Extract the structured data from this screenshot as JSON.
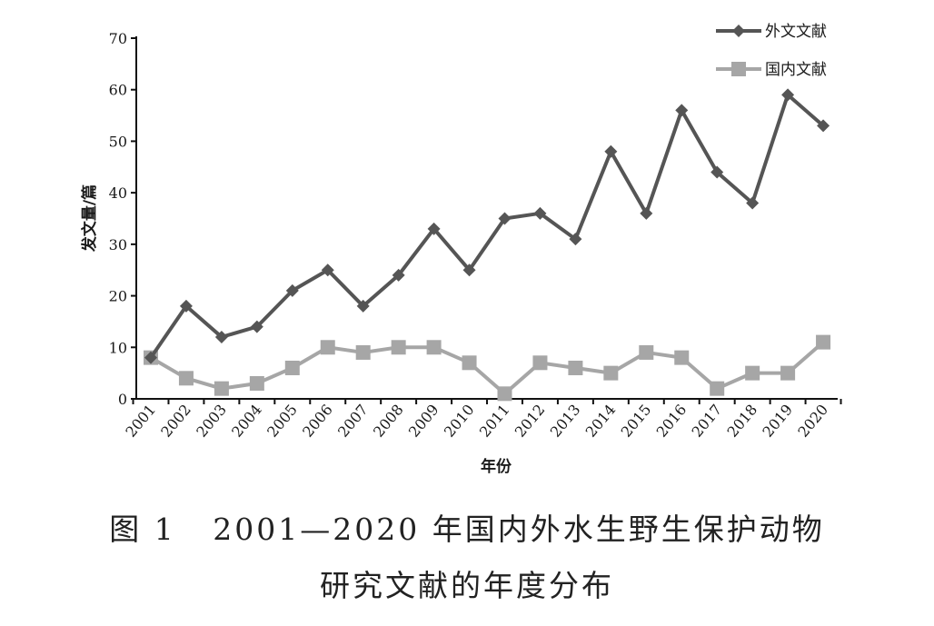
{
  "chart_data": {
    "type": "line",
    "xlabel": "年份",
    "ylabel": "发文量/篇",
    "ylim": [
      0,
      70
    ],
    "yticks": [
      0,
      10,
      20,
      30,
      40,
      50,
      60,
      70
    ],
    "categories": [
      "2001",
      "2002",
      "2003",
      "2004",
      "2005",
      "2006",
      "2007",
      "2008",
      "2009",
      "2010",
      "2011",
      "2012",
      "2013",
      "2014",
      "2015",
      "2016",
      "2017",
      "2018",
      "2019",
      "2020"
    ],
    "series": [
      {
        "name": "外文文献",
        "marker": "diamond",
        "color": "#555555",
        "values": [
          8,
          18,
          12,
          14,
          21,
          25,
          18,
          24,
          33,
          25,
          35,
          36,
          31,
          48,
          36,
          56,
          44,
          38,
          59,
          53
        ]
      },
      {
        "name": "国内文献",
        "marker": "square",
        "color": "#a6a6a6",
        "values": [
          8,
          4,
          2,
          3,
          6,
          10,
          9,
          10,
          10,
          7,
          1,
          7,
          6,
          5,
          9,
          8,
          2,
          5,
          5,
          11
        ]
      }
    ],
    "legend": "top-right",
    "grid": false
  },
  "caption": {
    "line1": "图 1   2001—2020 年国内外水生野生保护动物",
    "line2": "研究文献的年度分布"
  }
}
